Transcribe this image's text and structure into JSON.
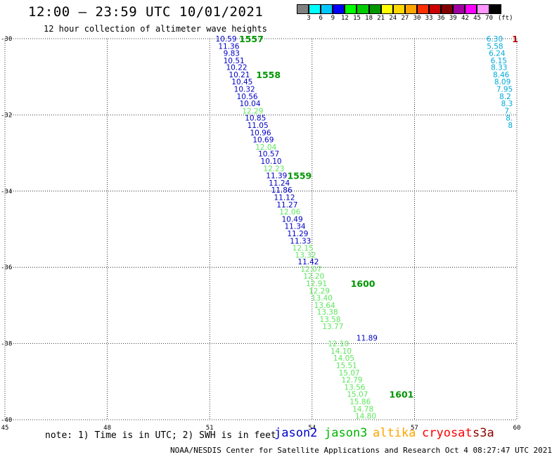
{
  "header": {
    "title": "12:00 — 23:59 UTC 10/01/2021",
    "subtitle": "12 hour collection of altimeter wave heights"
  },
  "colorbar": {
    "unit": "(ft)",
    "bins": [
      {
        "label": "3",
        "color": "#808080"
      },
      {
        "label": "6",
        "color": "#00ffff"
      },
      {
        "label": "9",
        "color": "#00c8ff"
      },
      {
        "label": "12",
        "color": "#0000ff"
      },
      {
        "label": "15",
        "color": "#00ff00"
      },
      {
        "label": "18",
        "color": "#00cc00"
      },
      {
        "label": "21",
        "color": "#009600"
      },
      {
        "label": "24",
        "color": "#ffff00"
      },
      {
        "label": "27",
        "color": "#ffd700"
      },
      {
        "label": "30",
        "color": "#ffa500"
      },
      {
        "label": "33",
        "color": "#ff3000"
      },
      {
        "label": "36",
        "color": "#cc0000"
      },
      {
        "label": "39",
        "color": "#800000"
      },
      {
        "label": "42",
        "color": "#a000a0"
      },
      {
        "label": "45",
        "color": "#ff00ff"
      },
      {
        "label": "70",
        "color": "#ff96ff"
      },
      {
        "label": "",
        "color": "#000000"
      }
    ]
  },
  "axes": {
    "lon_ticks": [
      "45",
      "48",
      "51",
      "54",
      "57",
      "60"
    ],
    "lat_ticks": [
      "-30",
      "-32",
      "-34",
      "-36",
      "-38",
      "-40"
    ],
    "lon_range": [
      45,
      60
    ],
    "lat_range": [
      -40,
      -30
    ]
  },
  "chart_data": {
    "type": "scatter",
    "title": "12:00 — 23:59 UTC 10/01/2021",
    "subtitle": "12 hour collection of altimeter wave heights",
    "xlim": [
      45,
      60
    ],
    "ylim": [
      -40,
      -30
    ],
    "grid": "dotted",
    "series": [
      {
        "name": "jason2",
        "color": "#0000c8",
        "points": [
          {
            "lon": 51.48,
            "lat": -30.0,
            "swh": "10.59"
          },
          {
            "lon": 51.56,
            "lat": -30.19,
            "swh": "11.36"
          },
          {
            "lon": 51.64,
            "lat": -30.38,
            "swh": "9.83"
          },
          {
            "lon": 51.71,
            "lat": -30.57,
            "swh": "10.51"
          },
          {
            "lon": 51.79,
            "lat": -30.75,
            "swh": "10.22"
          },
          {
            "lon": 51.87,
            "lat": -30.94,
            "swh": "10.21"
          },
          {
            "lon": 51.95,
            "lat": -31.13,
            "swh": "10.45"
          },
          {
            "lon": 52.02,
            "lat": -31.32,
            "swh": "10.32"
          },
          {
            "lon": 52.1,
            "lat": -31.51,
            "swh": "10.56"
          },
          {
            "lon": 52.18,
            "lat": -31.7,
            "swh": "10.04"
          },
          {
            "lon": 52.34,
            "lat": -32.08,
            "swh": "10.85"
          },
          {
            "lon": 52.41,
            "lat": -32.27,
            "swh": "11.05"
          },
          {
            "lon": 52.49,
            "lat": -32.46,
            "swh": "10.96"
          },
          {
            "lon": 52.57,
            "lat": -32.65,
            "swh": "10.69"
          },
          {
            "lon": 52.73,
            "lat": -33.02,
            "swh": "10.57"
          },
          {
            "lon": 52.8,
            "lat": -33.21,
            "swh": "10.10"
          },
          {
            "lon": 52.96,
            "lat": -33.59,
            "swh": "11.39"
          },
          {
            "lon": 53.04,
            "lat": -33.78,
            "swh": "11.24"
          },
          {
            "lon": 53.11,
            "lat": -33.97,
            "swh": "11.86"
          },
          {
            "lon": 53.19,
            "lat": -34.16,
            "swh": "11.12"
          },
          {
            "lon": 53.27,
            "lat": -34.35,
            "swh": "11.27"
          },
          {
            "lon": 53.42,
            "lat": -34.73,
            "swh": "10.49"
          },
          {
            "lon": 53.5,
            "lat": -34.92,
            "swh": "11.34"
          },
          {
            "lon": 53.58,
            "lat": -35.11,
            "swh": "11.29"
          },
          {
            "lon": 53.66,
            "lat": -35.3,
            "swh": "11.33"
          },
          {
            "lon": 53.89,
            "lat": -35.85,
            "swh": "11.42"
          },
          {
            "lon": 55.61,
            "lat": -37.85,
            "swh": "11.89"
          }
        ]
      },
      {
        "name": "jason3",
        "color": "#5ee65e",
        "points": [
          {
            "lon": 52.26,
            "lat": -31.89,
            "swh": "12.29"
          },
          {
            "lon": 52.65,
            "lat": -32.84,
            "swh": "12.04"
          },
          {
            "lon": 52.88,
            "lat": -33.4,
            "swh": "12.23"
          },
          {
            "lon": 53.35,
            "lat": -34.54,
            "swh": "12.06"
          },
          {
            "lon": 53.73,
            "lat": -35.49,
            "swh": "12.15"
          },
          {
            "lon": 53.81,
            "lat": -35.67,
            "swh": "13.32"
          },
          {
            "lon": 53.97,
            "lat": -36.04,
            "swh": "12.07"
          },
          {
            "lon": 54.05,
            "lat": -36.23,
            "swh": "12.20"
          },
          {
            "lon": 54.13,
            "lat": -36.42,
            "swh": "12.91"
          },
          {
            "lon": 54.21,
            "lat": -36.61,
            "swh": "12.29"
          },
          {
            "lon": 54.29,
            "lat": -36.8,
            "swh": "13.40"
          },
          {
            "lon": 54.37,
            "lat": -36.99,
            "swh": "13.64"
          },
          {
            "lon": 54.45,
            "lat": -37.17,
            "swh": "13.38"
          },
          {
            "lon": 54.53,
            "lat": -37.36,
            "swh": "13.58"
          },
          {
            "lon": 54.61,
            "lat": -37.55,
            "swh": "13.77"
          },
          {
            "lon": 54.77,
            "lat": -38.0,
            "swh": "12.10"
          },
          {
            "lon": 54.85,
            "lat": -38.19,
            "swh": "14.10"
          },
          {
            "lon": 54.93,
            "lat": -38.38,
            "swh": "14.05"
          },
          {
            "lon": 55.01,
            "lat": -38.57,
            "swh": "15.51"
          },
          {
            "lon": 55.09,
            "lat": -38.76,
            "swh": "15.07"
          },
          {
            "lon": 55.17,
            "lat": -38.95,
            "swh": "12.79"
          },
          {
            "lon": 55.25,
            "lat": -39.14,
            "swh": "13.56"
          },
          {
            "lon": 55.33,
            "lat": -39.33,
            "swh": "15.07"
          },
          {
            "lon": 55.41,
            "lat": -39.52,
            "swh": "15.86"
          },
          {
            "lon": 55.49,
            "lat": -39.71,
            "swh": "14.78"
          },
          {
            "lon": 55.57,
            "lat": -39.9,
            "swh": "14.80"
          }
        ]
      },
      {
        "name": "altika",
        "color": "#00aadc",
        "points": [
          {
            "lon": 59.35,
            "lat": -30.0,
            "swh": "6.30"
          },
          {
            "lon": 59.36,
            "lat": -30.19,
            "swh": "5.58"
          },
          {
            "lon": 59.42,
            "lat": -30.38,
            "swh": "6.24"
          },
          {
            "lon": 59.47,
            "lat": -30.57,
            "swh": "6.15"
          },
          {
            "lon": 59.48,
            "lat": -30.75,
            "swh": "8.33"
          },
          {
            "lon": 59.54,
            "lat": -30.94,
            "swh": "8.46"
          },
          {
            "lon": 59.58,
            "lat": -31.13,
            "swh": "8.09"
          },
          {
            "lon": 59.64,
            "lat": -31.32,
            "swh": "7.95"
          },
          {
            "lon": 59.66,
            "lat": -31.51,
            "swh": "8.2"
          },
          {
            "lon": 59.71,
            "lat": -31.7,
            "swh": "8.3"
          },
          {
            "lon": 59.74,
            "lat": -31.89,
            "swh": "7."
          },
          {
            "lon": 59.78,
            "lat": -32.08,
            "swh": "8."
          },
          {
            "lon": 59.81,
            "lat": -32.27,
            "swh": "8"
          }
        ]
      }
    ],
    "time_labels": [
      {
        "lon": 52.22,
        "lat": -30.0,
        "text": "1557"
      },
      {
        "lon": 52.72,
        "lat": -30.94,
        "text": "1558"
      },
      {
        "lon": 53.63,
        "lat": -33.59,
        "text": "1559"
      },
      {
        "lon": 55.49,
        "lat": -36.42,
        "text": "1600"
      },
      {
        "lon": 56.62,
        "lat": -39.33,
        "text": "1601"
      }
    ],
    "edge_time_label": {
      "lon": 59.95,
      "lat": -30.0,
      "text": "1"
    }
  },
  "footer": {
    "note": "note: 1) Time is in UTC; 2) SWH is in feet",
    "credit": "NOAA/NESDIS Center for Satellite Applications and Research   Oct  4 08:27:47 UTC 2021",
    "satellites": [
      {
        "name": "jason2",
        "color": "#0000c8"
      },
      {
        "name": "jason3",
        "color": "#00b400"
      },
      {
        "name": "altika",
        "color": "#ffa500"
      },
      {
        "name": "cryosat",
        "color": "#ff0000"
      },
      {
        "name": "s3a",
        "color": "#8b0000"
      }
    ]
  }
}
